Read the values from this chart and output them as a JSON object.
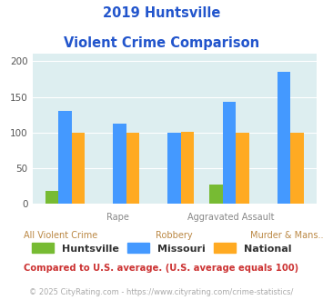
{
  "title_line1": "2019 Huntsville",
  "title_line2": "Violent Crime Comparison",
  "title_color": "#2255cc",
  "category_top_labels": [
    "",
    "Rape",
    "",
    "Aggravated Assault",
    ""
  ],
  "category_bottom_labels": [
    "All Violent Crime",
    "",
    "Robbery",
    "",
    "Murder & Mans..."
  ],
  "huntsville": [
    18,
    0,
    0,
    27,
    0
  ],
  "missouri": [
    130,
    112,
    100,
    143,
    185
  ],
  "national": [
    100,
    100,
    101,
    100,
    100
  ],
  "huntsville_color": "#77bb33",
  "missouri_color": "#4499ff",
  "national_color": "#ffaa22",
  "ylim": [
    0,
    210
  ],
  "yticks": [
    0,
    50,
    100,
    150,
    200
  ],
  "plot_bg": "#ddeef0",
  "legend_labels": [
    "Huntsville",
    "Missouri",
    "National"
  ],
  "footnote1": "Compared to U.S. average. (U.S. average equals 100)",
  "footnote2": "© 2025 CityRating.com - https://www.cityrating.com/crime-statistics/",
  "footnote1_color": "#cc3333",
  "footnote2_color": "#aaaaaa",
  "top_label_color": "#888888",
  "bottom_label_color": "#bb8844"
}
